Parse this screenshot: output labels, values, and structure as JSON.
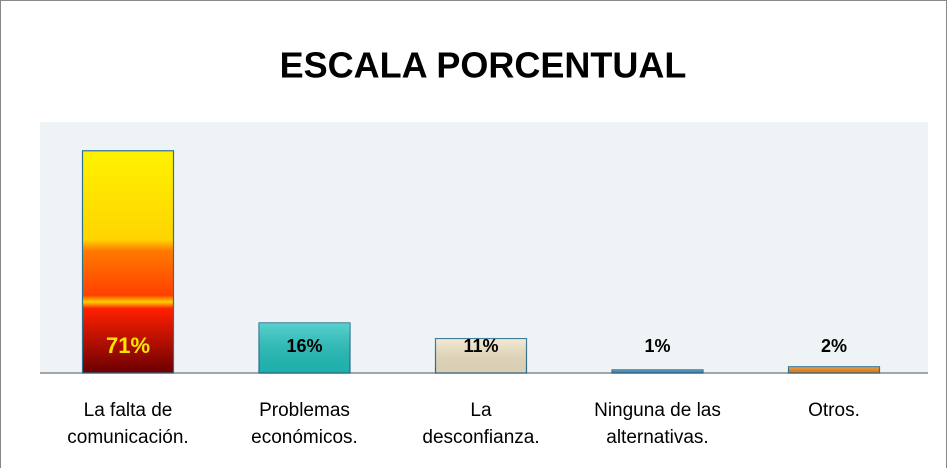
{
  "chart_data": {
    "type": "bar",
    "title": "ESCALA PORCENTUAL",
    "categories": [
      "La falta de\ncomunicación.",
      "Problemas\neconómicos.",
      "La\ndesconfianza.",
      "Ninguna de las\nalternativas.",
      "Otros."
    ],
    "values": [
      71,
      16,
      11,
      1,
      2
    ],
    "value_labels": [
      "71%",
      "16%",
      "11%",
      "1%",
      "2%"
    ],
    "colors": [
      "#ff6a00",
      "#22c4c0",
      "#f3e6c8",
      "#3b8fc4",
      "#f08a1c"
    ]
  }
}
